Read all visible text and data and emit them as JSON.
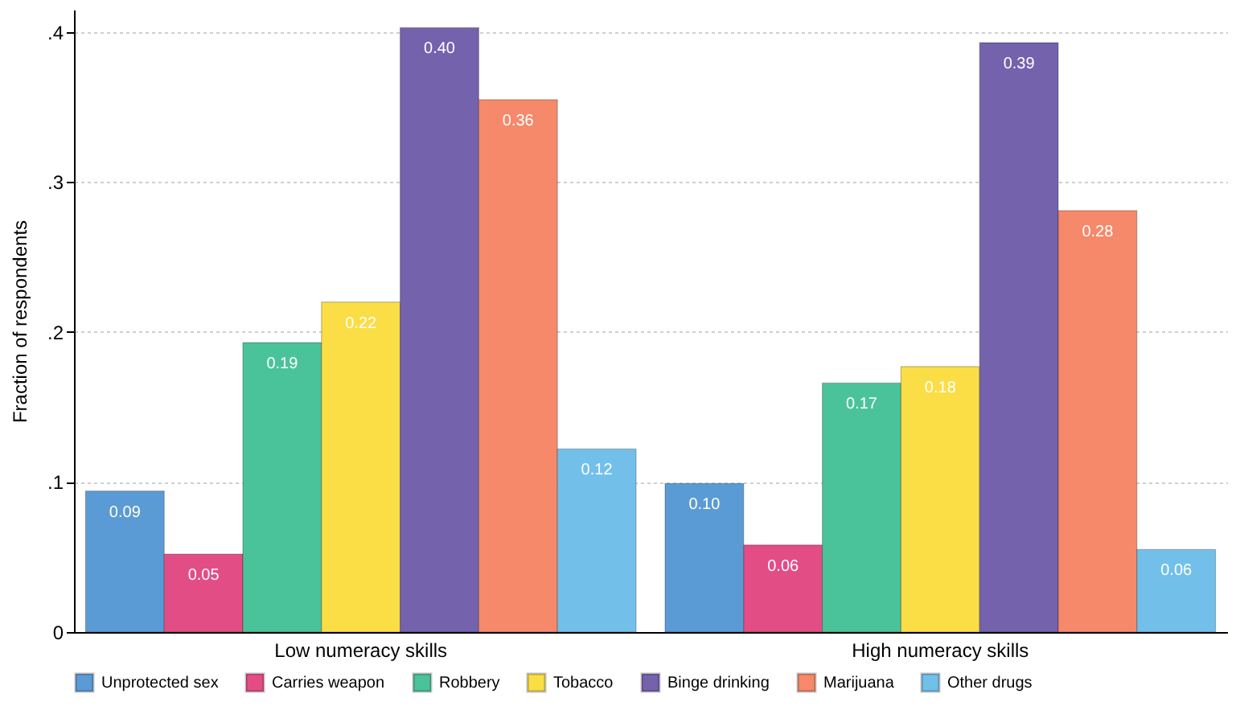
{
  "chart_data": {
    "type": "bar",
    "ylabel": "Fraction of respondents",
    "categories": [
      "Low numeracy skills",
      "High numeracy skills"
    ],
    "series": [
      {
        "name": "Unprotected sex",
        "color": "#5b9bd5",
        "values": [
          0.094,
          0.099
        ],
        "value_labels": [
          "0.09",
          "0.10"
        ]
      },
      {
        "name": "Carries weapon",
        "color": "#e34d86",
        "values": [
          0.052,
          0.058
        ],
        "value_labels": [
          "0.05",
          "0.06"
        ]
      },
      {
        "name": "Robbery",
        "color": "#4bc39a",
        "values": [
          0.193,
          0.166
        ],
        "value_labels": [
          "0.19",
          "0.17"
        ]
      },
      {
        "name": "Tobacco",
        "color": "#fbdd46",
        "values": [
          0.22,
          0.177
        ],
        "value_labels": [
          "0.22",
          "0.18"
        ]
      },
      {
        "name": "Binge drinking",
        "color": "#7462ad",
        "values": [
          0.403,
          0.393
        ],
        "value_labels": [
          "0.40",
          "0.39"
        ]
      },
      {
        "name": "Marijuana",
        "color": "#f5896a",
        "values": [
          0.355,
          0.281
        ],
        "value_labels": [
          "0.36",
          "0.28"
        ]
      },
      {
        "name": "Other drugs",
        "color": "#72c0ea",
        "values": [
          0.122,
          0.055
        ],
        "value_labels": [
          "0.12",
          "0.06"
        ]
      }
    ],
    "ylim": [
      0,
      0.415
    ],
    "yticks": [
      0,
      {
        "value": 0.1,
        "label": ".1"
      },
      {
        "value": 0.2,
        "label": ".2"
      },
      {
        "value": 0.3,
        "label": ".3"
      },
      {
        "value": 0.4,
        "label": ".4"
      }
    ],
    "grid": "y",
    "legend": "bottom"
  }
}
